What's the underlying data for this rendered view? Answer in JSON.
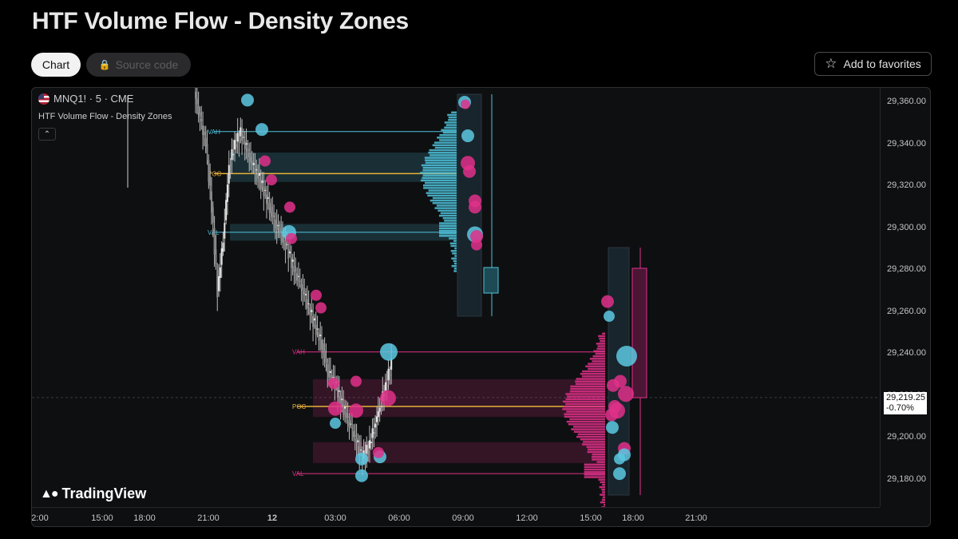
{
  "page": {
    "title": "HTF Volume Flow - Density Zones",
    "tabs": {
      "chart": "Chart",
      "source": "Source code"
    },
    "favorites_label": "Add to favorites"
  },
  "chart": {
    "symbol": "MNQ1! · 5 · CME",
    "indicator_name": "HTF Volume Flow - Density Zones",
    "brand": "TradingView",
    "last_price": "29,219.25",
    "last_change": "-0.70%",
    "colors": {
      "up_zone": "#4fc3dc",
      "down_zone": "#e0308a",
      "poc": "#e8b13a",
      "candle": "#c9c9c9",
      "background": "#0e0f11"
    }
  },
  "chart_data": {
    "type": "line",
    "title": "HTF Volume Flow - Density Zones",
    "y_ticks": [
      "29,360.00",
      "29,340.00",
      "29,320.00",
      "29,300.00",
      "29,280.00",
      "29,260.00",
      "29,240.00",
      "29,220.00",
      "29,200.00",
      "29,180.00"
    ],
    "y_tick_values": [
      29360,
      29340,
      29320,
      29300,
      29280,
      29260,
      29240,
      29220,
      29200,
      29180
    ],
    "ylim": [
      29174,
      29366
    ],
    "x_ticks": [
      "2:00",
      "15:00",
      "18:00",
      "21:00",
      "12",
      "03:00",
      "06:00",
      "09:00",
      "12:00",
      "15:00",
      "18:00",
      "21:00"
    ],
    "profiles": [
      {
        "name": "session-1",
        "color": "#4fc3dc",
        "vah_label": "VAH",
        "poc_label": "POC",
        "val_label": "VAL",
        "vah": 29346,
        "poc": 29326,
        "val": 29298,
        "zones": [
          [
            29322,
            29336
          ],
          [
            29294,
            29302
          ]
        ]
      },
      {
        "name": "session-2",
        "color": "#e0308a",
        "vah_label": "VAH",
        "poc_label": "POC",
        "val_label": "VAL",
        "vah": 29241,
        "poc": 29215,
        "val": 29183,
        "zones": [
          [
            29210,
            29228
          ],
          [
            29188,
            29198
          ]
        ]
      }
    ],
    "close_series": [
      29365,
      29352,
      29340,
      29310,
      29270,
      29295,
      29330,
      29340,
      29345,
      29338,
      29330,
      29325,
      29318,
      29310,
      29302,
      29298,
      29290,
      29282,
      29275,
      29268,
      29260,
      29252,
      29245,
      29232,
      29228,
      29220,
      29212,
      29205,
      29198,
      29190,
      29195,
      29205,
      29215,
      29225,
      29235
    ],
    "last_price_value": 29219.25
  }
}
